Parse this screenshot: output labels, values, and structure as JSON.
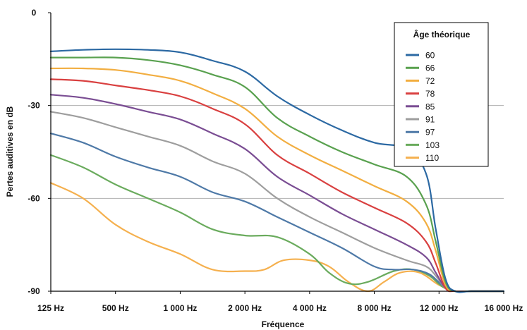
{
  "chart_data": {
    "type": "line",
    "title": "",
    "xlabel": "Fréquence",
    "ylabel": "Pertes auditives en dB",
    "x_categories": [
      "125 Hz",
      "500 Hz",
      "1 000 Hz",
      "2 000 Hz",
      "4 000 Hz",
      "8 000 Hz",
      "12 000 Hz",
      "16 000 Hz"
    ],
    "y_ticks": [
      0,
      -30,
      -60,
      -90
    ],
    "ylim": [
      -90,
      0
    ],
    "grid": "horizontal",
    "legend": {
      "title": "Âge théorique",
      "placement": "top-right"
    },
    "series": [
      {
        "name": "60",
        "color": "#2c69a3",
        "points": [
          [
            0,
            -12.5
          ],
          [
            0.5,
            -12
          ],
          [
            1,
            -11.8
          ],
          [
            1.5,
            -12
          ],
          [
            2,
            -12.8
          ],
          [
            2.5,
            -15.5
          ],
          [
            3,
            -19
          ],
          [
            3.5,
            -27
          ],
          [
            4,
            -33
          ],
          [
            4.5,
            -38
          ],
          [
            5,
            -42
          ],
          [
            5.5,
            -44
          ],
          [
            5.8,
            -52
          ],
          [
            5.95,
            -70
          ],
          [
            6.1,
            -86
          ],
          [
            6.25,
            -90
          ],
          [
            6.5,
            -90
          ],
          [
            7,
            -90
          ]
        ]
      },
      {
        "name": "66",
        "color": "#59a14f",
        "points": [
          [
            0,
            -14.5
          ],
          [
            0.5,
            -14.5
          ],
          [
            1,
            -14.5
          ],
          [
            1.5,
            -15.3
          ],
          [
            2,
            -17
          ],
          [
            2.5,
            -20
          ],
          [
            3,
            -24
          ],
          [
            3.5,
            -34
          ],
          [
            4,
            -40
          ],
          [
            4.5,
            -45
          ],
          [
            5,
            -49
          ],
          [
            5.5,
            -53
          ],
          [
            5.8,
            -62
          ],
          [
            5.95,
            -74
          ],
          [
            6.1,
            -87
          ],
          [
            6.25,
            -90
          ],
          [
            6.5,
            -90
          ],
          [
            7,
            -90
          ]
        ]
      },
      {
        "name": "72",
        "color": "#f2ae41",
        "points": [
          [
            0,
            -18
          ],
          [
            0.5,
            -18
          ],
          [
            1,
            -18.5
          ],
          [
            1.5,
            -20
          ],
          [
            2,
            -22
          ],
          [
            2.5,
            -26
          ],
          [
            3,
            -31
          ],
          [
            3.5,
            -40
          ],
          [
            4,
            -46
          ],
          [
            4.5,
            -51
          ],
          [
            5,
            -56
          ],
          [
            5.5,
            -61
          ],
          [
            5.8,
            -68
          ],
          [
            5.95,
            -77
          ],
          [
            6.1,
            -88
          ],
          [
            6.25,
            -90
          ],
          [
            6.5,
            -90
          ],
          [
            7,
            -90
          ]
        ]
      },
      {
        "name": "78",
        "color": "#d94040",
        "points": [
          [
            0,
            -21.5
          ],
          [
            0.5,
            -22
          ],
          [
            1,
            -23.5
          ],
          [
            1.5,
            -25
          ],
          [
            2,
            -27
          ],
          [
            2.5,
            -31
          ],
          [
            3,
            -36
          ],
          [
            3.5,
            -46
          ],
          [
            4,
            -52
          ],
          [
            4.5,
            -58
          ],
          [
            5,
            -63
          ],
          [
            5.5,
            -68
          ],
          [
            5.8,
            -74
          ],
          [
            5.95,
            -81
          ],
          [
            6.1,
            -89
          ],
          [
            6.25,
            -90
          ],
          [
            6.5,
            -90
          ],
          [
            7,
            -90
          ]
        ]
      },
      {
        "name": "85",
        "color": "#7a4d93",
        "points": [
          [
            0,
            -26.5
          ],
          [
            0.5,
            -27.5
          ],
          [
            1,
            -29.5
          ],
          [
            1.5,
            -32
          ],
          [
            2,
            -34.5
          ],
          [
            2.5,
            -39
          ],
          [
            3,
            -44
          ],
          [
            3.5,
            -53
          ],
          [
            4,
            -59
          ],
          [
            4.5,
            -65
          ],
          [
            5,
            -70
          ],
          [
            5.5,
            -75
          ],
          [
            5.8,
            -79
          ],
          [
            5.95,
            -84
          ],
          [
            6.1,
            -89
          ],
          [
            6.25,
            -90
          ],
          [
            6.5,
            -90
          ],
          [
            7,
            -90
          ]
        ]
      },
      {
        "name": "91",
        "color": "#9e9e9e",
        "points": [
          [
            0,
            -32
          ],
          [
            0.5,
            -34
          ],
          [
            1,
            -37
          ],
          [
            1.5,
            -40
          ],
          [
            2,
            -43
          ],
          [
            2.5,
            -48
          ],
          [
            3,
            -52
          ],
          [
            3.5,
            -60
          ],
          [
            4,
            -66
          ],
          [
            4.5,
            -71
          ],
          [
            5,
            -76
          ],
          [
            5.5,
            -80
          ],
          [
            5.8,
            -82
          ],
          [
            5.95,
            -85
          ],
          [
            6.1,
            -89
          ],
          [
            6.25,
            -90
          ],
          [
            6.5,
            -90
          ],
          [
            7,
            -90
          ]
        ]
      },
      {
        "name": "97",
        "color": "#4e79a7",
        "points": [
          [
            0,
            -39
          ],
          [
            0.5,
            -42
          ],
          [
            1,
            -46.5
          ],
          [
            1.5,
            -50
          ],
          [
            2,
            -53
          ],
          [
            2.5,
            -58
          ],
          [
            3,
            -61
          ],
          [
            3.5,
            -66
          ],
          [
            4,
            -71
          ],
          [
            4.5,
            -76
          ],
          [
            5,
            -82
          ],
          [
            5.3,
            -83
          ],
          [
            5.6,
            -83
          ],
          [
            5.85,
            -84.5
          ],
          [
            6.05,
            -88
          ],
          [
            6.25,
            -90
          ],
          [
            6.5,
            -90
          ],
          [
            7,
            -90
          ]
        ]
      },
      {
        "name": "103",
        "color": "#6aab5d",
        "points": [
          [
            0,
            -46
          ],
          [
            0.5,
            -50
          ],
          [
            1,
            -55.5
          ],
          [
            1.5,
            -60
          ],
          [
            2,
            -64.5
          ],
          [
            2.5,
            -70
          ],
          [
            3,
            -72
          ],
          [
            3.5,
            -72.5
          ],
          [
            4,
            -78
          ],
          [
            4.3,
            -84
          ],
          [
            4.6,
            -87.5
          ],
          [
            4.9,
            -87
          ],
          [
            5.3,
            -83.5
          ],
          [
            5.6,
            -83
          ],
          [
            5.85,
            -85
          ],
          [
            6.05,
            -88.5
          ],
          [
            6.25,
            -90
          ],
          [
            6.5,
            -90
          ],
          [
            7,
            -90
          ]
        ]
      },
      {
        "name": "110",
        "color": "#f5b04e",
        "points": [
          [
            0,
            -55
          ],
          [
            0.5,
            -60
          ],
          [
            1,
            -68.5
          ],
          [
            1.5,
            -74
          ],
          [
            2,
            -78
          ],
          [
            2.5,
            -83
          ],
          [
            3,
            -83.5
          ],
          [
            3.3,
            -83
          ],
          [
            3.6,
            -80
          ],
          [
            4,
            -80
          ],
          [
            4.3,
            -82
          ],
          [
            4.6,
            -87
          ],
          [
            4.9,
            -90
          ],
          [
            5.15,
            -87
          ],
          [
            5.4,
            -84
          ],
          [
            5.7,
            -84
          ],
          [
            6.0,
            -88
          ],
          [
            6.25,
            -90
          ],
          [
            6.5,
            -90
          ],
          [
            7,
            -90
          ]
        ]
      }
    ]
  }
}
